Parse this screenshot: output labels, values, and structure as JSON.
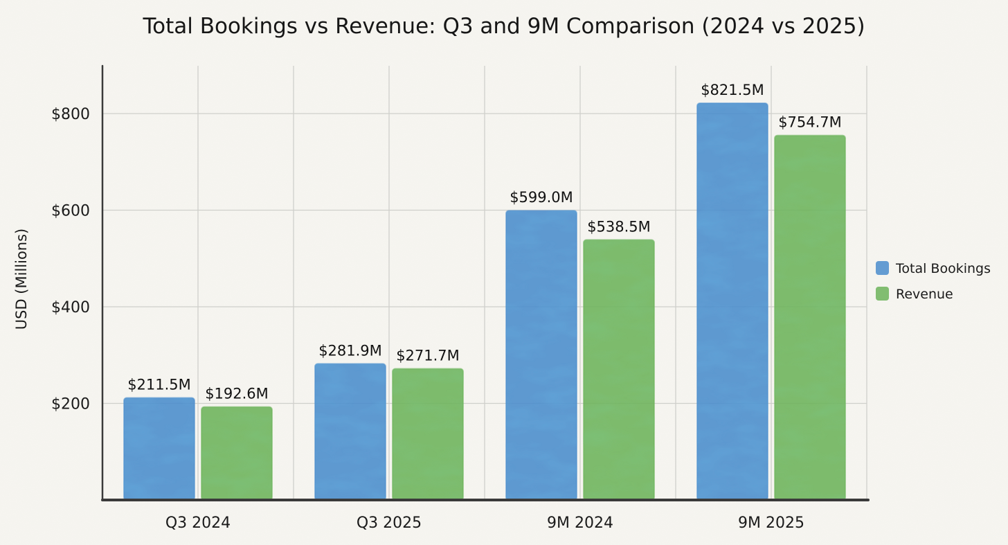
{
  "chart_data": {
    "type": "bar",
    "title": "Total Bookings vs Revenue: Q3 and 9M Comparison (2024 vs 2025)",
    "xlabel": "",
    "ylabel": "USD (Millions)",
    "ylim": [
      0,
      900
    ],
    "yticks": [
      200,
      400,
      600,
      800
    ],
    "ytick_labels": [
      "$200",
      "$400",
      "$600",
      "$800"
    ],
    "categories": [
      "Q3 2024",
      "Q3 2025",
      "9M 2024",
      "9M 2025"
    ],
    "series": [
      {
        "name": "Total Bookings",
        "color": "#4a8ccc",
        "values": [
          211.5,
          281.9,
          599.0,
          821.5
        ],
        "labels": [
          "$211.5M",
          "$281.9M",
          "$599.0M",
          "$821.5M"
        ]
      },
      {
        "name": "Revenue",
        "color": "#6cb35a",
        "values": [
          192.6,
          271.7,
          538.5,
          754.7
        ],
        "labels": [
          "$192.6M",
          "$271.7M",
          "$538.5M",
          "$754.7M"
        ]
      }
    ],
    "grid": true,
    "legend_position": "right"
  }
}
